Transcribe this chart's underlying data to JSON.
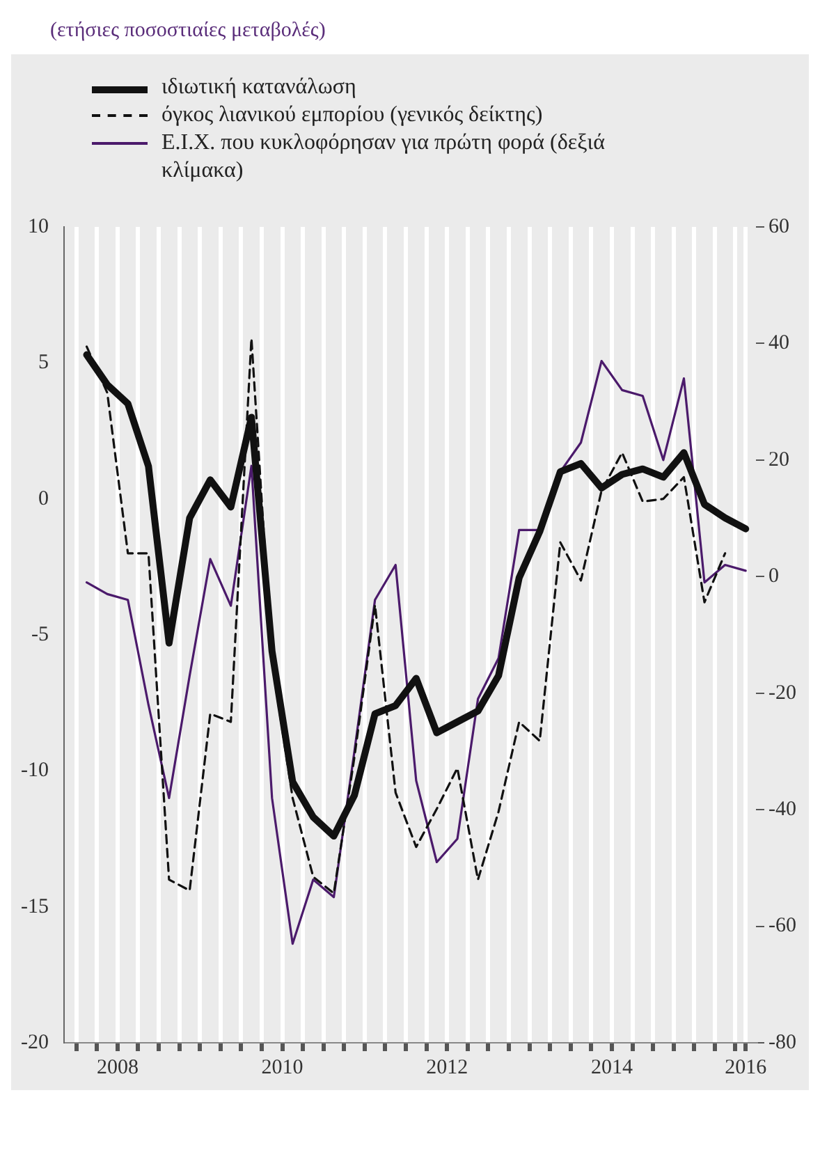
{
  "chart_data": {
    "type": "line",
    "title": "(ετήσιες ποσοστιαίες μεταβολές)",
    "x": [
      2008.125,
      2008.375,
      2008.625,
      2008.875,
      2009.125,
      2009.375,
      2009.625,
      2009.875,
      2010.125,
      2010.375,
      2010.625,
      2010.875,
      2011.125,
      2011.375,
      2011.625,
      2011.875,
      2012.125,
      2012.375,
      2012.625,
      2012.875,
      2013.125,
      2013.375,
      2013.625,
      2013.875,
      2014.125,
      2014.375,
      2014.625,
      2014.875,
      2015.125,
      2015.375,
      2015.625,
      2015.875,
      2016.125
    ],
    "series": [
      {
        "name": "ιδιωτική κατανάλωση",
        "color": "#111111",
        "line_style": "solid",
        "values": [
          5.3,
          4.2,
          3.5,
          1.2,
          -5.3,
          -0.7,
          0.7,
          -0.3,
          3.0,
          -5.6,
          -10.4,
          -11.7,
          -12.4,
          -10.9,
          -7.9,
          -7.6,
          -6.6,
          -8.6,
          -8.2,
          -7.8,
          -6.5,
          -2.9,
          -1.2,
          1.0,
          1.3,
          0.4,
          0.9,
          1.1,
          0.8,
          1.7,
          -0.2,
          -0.7,
          -1.1
        ]
      },
      {
        "name": "όγκος λιανικού εμπορίου (γενικός δείκτης)",
        "color": "#111111",
        "line_style": "dashed",
        "values": [
          5.6,
          3.9,
          -2.0,
          -2.0,
          -14.0,
          -14.4,
          -7.9,
          -8.2,
          5.9,
          -6.0,
          -11.0,
          -13.9,
          -14.5,
          -9.5,
          -3.9,
          -10.8,
          -12.8,
          -11.4,
          -9.9,
          -14.0,
          -11.5,
          -8.2,
          -8.9,
          -1.6,
          -3.0,
          0.3,
          1.7,
          -0.1,
          0.0,
          0.8,
          -3.8,
          -2.0,
          null
        ]
      },
      {
        "name": "Ε.Ι.Χ. που κυκλοφόρησαν για πρώτη φορά (δεξιά κλίμακα)",
        "color": "#4b1a6b",
        "line_style": "solid",
        "axis": "y2",
        "values": [
          -1,
          -3,
          -4,
          -22,
          -38,
          -17,
          3,
          -5,
          19,
          -38,
          -63,
          -52,
          -55,
          -30,
          -4,
          2,
          -35,
          -49,
          -45,
          -21,
          -14,
          8,
          8,
          18,
          23,
          37,
          32,
          31,
          20,
          34,
          -1,
          2,
          1
        ]
      }
    ],
    "xlim": [
      2007.85,
      2016.25
    ],
    "xticks": [
      {
        "value": 2008,
        "label": null
      },
      {
        "value": 2008.25,
        "label": null
      },
      {
        "value": 2008.5,
        "label": "2008"
      },
      {
        "value": 2008.75,
        "label": null
      },
      {
        "value": 2009,
        "label": null
      },
      {
        "value": 2009.25,
        "label": null
      },
      {
        "value": 2009.5,
        "label": null
      },
      {
        "value": 2009.75,
        "label": null
      },
      {
        "value": 2010,
        "label": null
      },
      {
        "value": 2010.25,
        "label": null
      },
      {
        "value": 2010.5,
        "label": "2010"
      },
      {
        "value": 2010.75,
        "label": null
      },
      {
        "value": 2011,
        "label": null
      },
      {
        "value": 2011.25,
        "label": null
      },
      {
        "value": 2011.5,
        "label": null
      },
      {
        "value": 2011.75,
        "label": null
      },
      {
        "value": 2012,
        "label": null
      },
      {
        "value": 2012.25,
        "label": null
      },
      {
        "value": 2012.5,
        "label": "2012"
      },
      {
        "value": 2012.75,
        "label": null
      },
      {
        "value": 2013,
        "label": null
      },
      {
        "value": 2013.25,
        "label": null
      },
      {
        "value": 2013.5,
        "label": null
      },
      {
        "value": 2013.75,
        "label": null
      },
      {
        "value": 2014,
        "label": null
      },
      {
        "value": 2014.25,
        "label": null
      },
      {
        "value": 2014.5,
        "label": "2014"
      },
      {
        "value": 2014.75,
        "label": null
      },
      {
        "value": 2015,
        "label": null
      },
      {
        "value": 2015.25,
        "label": null
      },
      {
        "value": 2015.5,
        "label": null
      },
      {
        "value": 2015.75,
        "label": null
      },
      {
        "value": 2016,
        "label": null
      },
      {
        "value": 2016.125,
        "label": "2016"
      }
    ],
    "ylim": [
      -20,
      10
    ],
    "yticks": [
      -20,
      -15,
      -10,
      -5,
      0,
      5,
      10
    ],
    "y2lim": [
      -80,
      60
    ],
    "y2ticks": [
      -80,
      -60,
      -40,
      -20,
      0,
      20,
      40,
      60
    ],
    "grid": "x",
    "legend": "top left",
    "marker": "none"
  }
}
